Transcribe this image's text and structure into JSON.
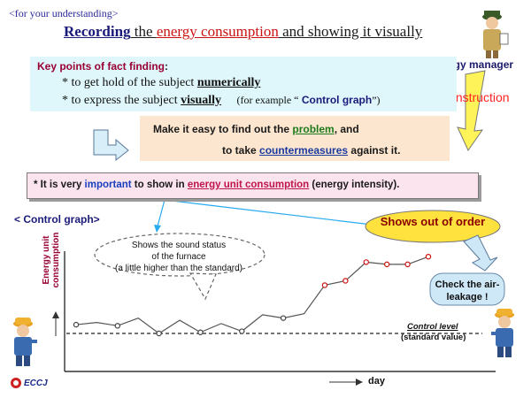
{
  "header_note": "<for your understanding>",
  "title": {
    "part1": "Recording",
    "part2": " the ",
    "part3": "energy consumption",
    "part4": " and showing it visually"
  },
  "role_label": "Energy manager",
  "instruction_label": "Instruction",
  "key_points": {
    "heading": "Key points of fact finding",
    "heading_colon": ":",
    "line1_prefix": "* to get hold of the subject ",
    "line1_emph": "numerically",
    "line2_prefix": "* to express the subject ",
    "line2_emph": "visually",
    "line2_example_prefix": "(for example “",
    "line2_example_name": " Control graph",
    "line2_example_suffix": "”)"
  },
  "goal": {
    "line1_prefix": "Make it easy to find out the ",
    "line1_emph": "problem",
    "line1_suffix": ", and",
    "line2_prefix": "to take ",
    "line2_emph": "countermeasures",
    "line2_suffix": " against it."
  },
  "important_note": {
    "prefix": "* It is very ",
    "emph1": "important",
    "middle": " to show in ",
    "emph2": "energy unit consumption",
    "suffix": " (energy intensity)."
  },
  "control_graph_title": "< Control graph>",
  "callout": {
    "line1": "Shows the sound status",
    "line2": "of the furnace",
    "line3": "(a little higher than the standard)"
  },
  "alert_text": "Shows out of order",
  "action_text": {
    "line1": "Check the air-",
    "line2": "leakage  !"
  },
  "logo_text": "ECCJ",
  "colors": {
    "accent_blue": "#1a1a7a",
    "alert_red": "#cc1111",
    "key_points_bg": "#dff7fb",
    "goal_bg": "#fde6cf",
    "important_bg": "#fbe4ee",
    "alert_bg": "#ffe23d"
  },
  "chart_data": {
    "type": "line",
    "xlabel": "day",
    "ylabel": "Energy unit consumption",
    "reference_line": {
      "label": "Control level",
      "sublabel": "(standard value)",
      "value": 0
    },
    "series": [
      {
        "values": [
          0.8,
          1.0,
          0.7,
          1.4,
          0.0,
          1.2,
          0.1,
          0.9,
          0.2,
          1.7,
          1.4,
          1.8,
          4.4,
          4.8,
          6.5,
          6.3,
          6.3,
          7.0
        ],
        "abnormal_from_index": 12
      }
    ]
  }
}
